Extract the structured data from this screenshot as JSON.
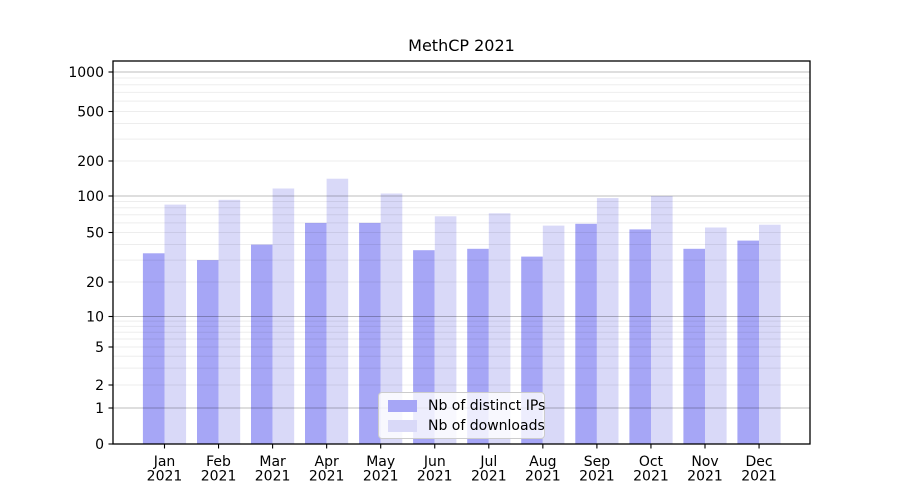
{
  "chart_data": {
    "type": "bar",
    "title": "MethCP 2021",
    "categories": [
      "Jan 2021",
      "Feb 2021",
      "Mar 2021",
      "Apr 2021",
      "May 2021",
      "Jun 2021",
      "Jul 2021",
      "Aug 2021",
      "Sep 2021",
      "Oct 2021",
      "Nov 2021",
      "Dec 2021"
    ],
    "series": [
      {
        "name": "Nb of distinct IPs",
        "color": "#a6a6f6",
        "values": [
          34,
          30,
          40,
          60,
          60,
          36,
          37,
          32,
          59,
          53,
          37,
          43
        ]
      },
      {
        "name": "Nb of downloads",
        "color": "#d9d9f8",
        "values": [
          85,
          93,
          116,
          141,
          105,
          68,
          72,
          57,
          96,
          100,
          55,
          58
        ]
      }
    ],
    "yticks": [
      0,
      1,
      2,
      5,
      10,
      20,
      50,
      100,
      200,
      500,
      1000
    ],
    "yscale": "symlog",
    "ylim": [
      0,
      1200
    ],
    "grid": "both",
    "legend_position": "lower center",
    "xlabel": "",
    "ylabel": ""
  }
}
